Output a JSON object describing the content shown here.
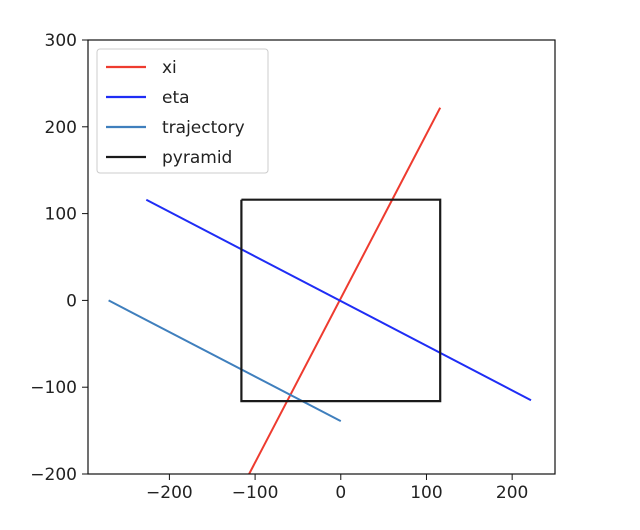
{
  "chart_data": {
    "type": "line",
    "title": "",
    "xlabel": "",
    "ylabel": "",
    "xlim": [
      -295,
      250
    ],
    "ylim": [
      -200,
      300
    ],
    "x_ticks": [
      -200,
      -100,
      0,
      100,
      200
    ],
    "y_ticks": [
      -200,
      -100,
      0,
      100,
      200,
      300
    ],
    "x_tick_labels": [
      "−200",
      "−100",
      "0",
      "100",
      "200"
    ],
    "y_tick_labels": [
      "−200",
      "−100",
      "0",
      "100",
      "200",
      "300"
    ],
    "grid": false,
    "legend_position": "upper-left",
    "series": [
      {
        "name": "xi",
        "color": "#ee3b2f",
        "x": [
          -107,
          116
        ],
        "y": [
          -200,
          222
        ]
      },
      {
        "name": "eta",
        "color": "#1f2df5",
        "x": [
          -227,
          222
        ],
        "y": [
          116,
          -115
        ]
      },
      {
        "name": "trajectory",
        "color": "#3f7fbd",
        "x": [
          -271,
          0
        ],
        "y": [
          0,
          -139
        ]
      },
      {
        "name": "pyramid",
        "color": "#1a1a1a",
        "x": [
          -116,
          116,
          116,
          -116,
          -116
        ],
        "y": [
          116,
          116,
          -116,
          -116,
          116
        ]
      }
    ]
  }
}
